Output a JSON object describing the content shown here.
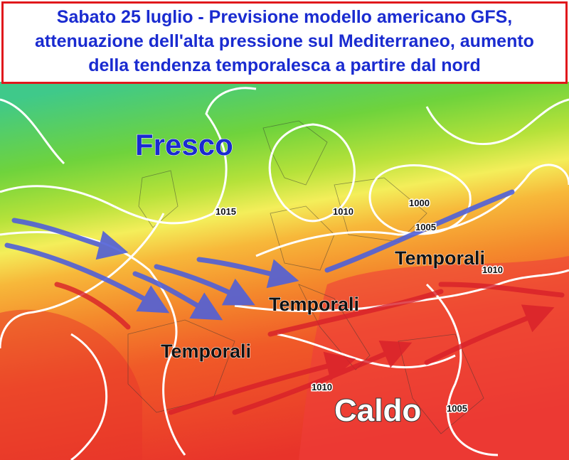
{
  "header": {
    "lines": [
      "Sabato 25 luglio - Previsione modello americano GFS,",
      "attenuazione dell'alta pressione sul Mediterraneo, aumento",
      "della tendenza temporalesca a partire dal nord"
    ]
  },
  "map": {
    "labels": {
      "fresco": "Fresco",
      "caldo": "Caldo",
      "temporali": [
        "Temporali",
        "Temporali",
        "Temporali"
      ]
    },
    "isobars": [
      1015,
      1010,
      1000,
      1005,
      1010,
      1010,
      1005
    ]
  }
}
